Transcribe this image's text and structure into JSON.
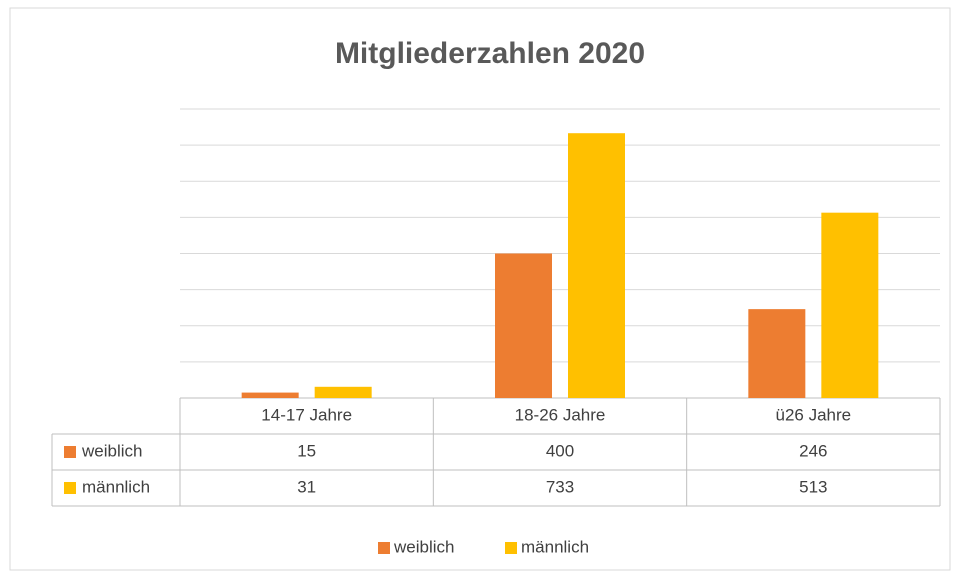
{
  "chart_data": {
    "type": "bar",
    "title": "Mitgliederzahlen 2020",
    "categories": [
      "14-17 Jahre",
      "18-26 Jahre",
      "ü26 Jahre"
    ],
    "series": [
      {
        "name": "weiblich",
        "color": "#ED7D31",
        "values": [
          15,
          400,
          246
        ]
      },
      {
        "name": "männlich",
        "color": "#FFC000",
        "values": [
          31,
          733,
          513
        ]
      }
    ],
    "ylim": [
      0,
      800
    ],
    "yticks": [
      0,
      100,
      200,
      300,
      400,
      500,
      600,
      700,
      800
    ],
    "grid": true
  }
}
